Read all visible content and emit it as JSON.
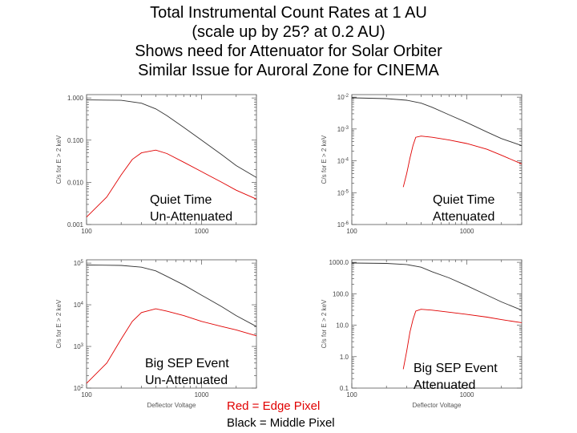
{
  "title_lines": [
    "Total Instrumental Count Rates at 1 AU",
    "(scale up by 25? at 0.2 AU)",
    "Shows need for Attenuator for Solar Orbiter",
    "Similar Issue for Auroral Zone for CINEMA"
  ],
  "panel_labels": {
    "p1": [
      "Quiet Time",
      "Un-Attenuated"
    ],
    "p2": [
      "Quiet Time",
      "Attenuated"
    ],
    "p3": [
      "Big SEP Event",
      "Un-Attenuated"
    ],
    "p4": [
      "Big SEP Event",
      "Attenuated"
    ]
  },
  "legend": {
    "red": "Red = Edge Pixel",
    "black": "Black = Middle Pixel"
  },
  "colors": {
    "edge": "#e00000",
    "middle": "#333333"
  },
  "chart_data": [
    {
      "type": "line",
      "id": "p1",
      "log_x": true,
      "log_y": true,
      "xlim": [
        100,
        3000
      ],
      "ylim": [
        0.001,
        1.2
      ],
      "ylabel": "C/s for E > 2 keV",
      "xlabel": "",
      "y_ticks": [
        "1.000",
        "0.100",
        "0.010",
        "0.001"
      ],
      "x_ticks": [
        "100",
        "1000"
      ],
      "series": [
        {
          "color_key": "middle",
          "x": [
            100,
            200,
            300,
            400,
            500,
            700,
            1000,
            1500,
            2000,
            3000
          ],
          "y": [
            0.9,
            0.88,
            0.75,
            0.55,
            0.38,
            0.2,
            0.1,
            0.045,
            0.025,
            0.013
          ]
        },
        {
          "color_key": "edge",
          "x": [
            100,
            150,
            200,
            250,
            300,
            400,
            500,
            700,
            1000,
            1500,
            2000,
            3000
          ],
          "y": [
            0.0015,
            0.0045,
            0.015,
            0.035,
            0.05,
            0.058,
            0.048,
            0.03,
            0.018,
            0.01,
            0.0065,
            0.004
          ]
        }
      ]
    },
    {
      "type": "line",
      "id": "p2",
      "log_x": true,
      "log_y": true,
      "xlim": [
        100,
        3000
      ],
      "ylim": [
        1e-06,
        0.012
      ],
      "ylabel": "C/s for E > 2 keV",
      "xlabel": "",
      "y_ticks": [
        "10^-2",
        "10^-3",
        "10^-4",
        "10^-5",
        "10^-6"
      ],
      "x_ticks": [
        "100",
        "1000"
      ],
      "series": [
        {
          "color_key": "middle",
          "x": [
            100,
            200,
            300,
            400,
            500,
            700,
            1000,
            1500,
            2000,
            3000
          ],
          "y": [
            0.0095,
            0.009,
            0.008,
            0.0065,
            0.0048,
            0.0028,
            0.0016,
            0.0008,
            0.0005,
            0.0003
          ]
        },
        {
          "color_key": "edge",
          "x": [
            280,
            300,
            320,
            340,
            360,
            400,
            500,
            700,
            1000,
            1500,
            2000,
            3000
          ],
          "y": [
            1.5e-05,
            4e-05,
            0.00012,
            0.0003,
            0.00055,
            0.0006,
            0.00055,
            0.00045,
            0.00035,
            0.00023,
            0.00015,
            8e-05
          ]
        }
      ]
    },
    {
      "type": "line",
      "id": "p3",
      "log_x": true,
      "log_y": true,
      "xlim": [
        100,
        3000
      ],
      "ylim": [
        100,
        120000
      ],
      "ylabel": "C/s for E > 2 keV",
      "xlabel": "Deflector Voltage",
      "y_ticks": [
        "10^5",
        "10^4",
        "10^3",
        "10^2"
      ],
      "x_ticks": [
        "100",
        "1000"
      ],
      "series": [
        {
          "color_key": "middle",
          "x": [
            100,
            200,
            300,
            400,
            500,
            700,
            1000,
            1500,
            2000,
            3000
          ],
          "y": [
            90000,
            88000,
            80000,
            65000,
            48000,
            30000,
            17000,
            9000,
            5500,
            3000
          ]
        },
        {
          "color_key": "edge",
          "x": [
            100,
            150,
            200,
            250,
            300,
            400,
            500,
            700,
            1000,
            1500,
            2000,
            3000
          ],
          "y": [
            130,
            400,
            1500,
            4000,
            6500,
            8000,
            7000,
            5500,
            4000,
            3000,
            2500,
            1800
          ]
        }
      ]
    },
    {
      "type": "line",
      "id": "p4",
      "log_x": true,
      "log_y": true,
      "xlim": [
        100,
        3000
      ],
      "ylim": [
        0.1,
        1200
      ],
      "ylabel": "C/s for E > 2 keV",
      "xlabel": "Deflector Voltage",
      "y_ticks": [
        "1000.0",
        "100.0",
        "10.0",
        "1.0",
        "0.1"
      ],
      "x_ticks": [
        "100",
        "1000"
      ],
      "series": [
        {
          "color_key": "middle",
          "x": [
            100,
            200,
            300,
            400,
            500,
            700,
            1000,
            1500,
            2000,
            3000
          ],
          "y": [
            950,
            920,
            850,
            700,
            500,
            320,
            180,
            90,
            55,
            30
          ]
        },
        {
          "color_key": "edge",
          "x": [
            280,
            300,
            320,
            340,
            360,
            400,
            500,
            700,
            1000,
            1500,
            2000,
            3000
          ],
          "y": [
            0.4,
            1.5,
            6,
            15,
            28,
            32,
            30,
            26,
            22,
            18,
            15,
            12
          ]
        }
      ]
    }
  ]
}
